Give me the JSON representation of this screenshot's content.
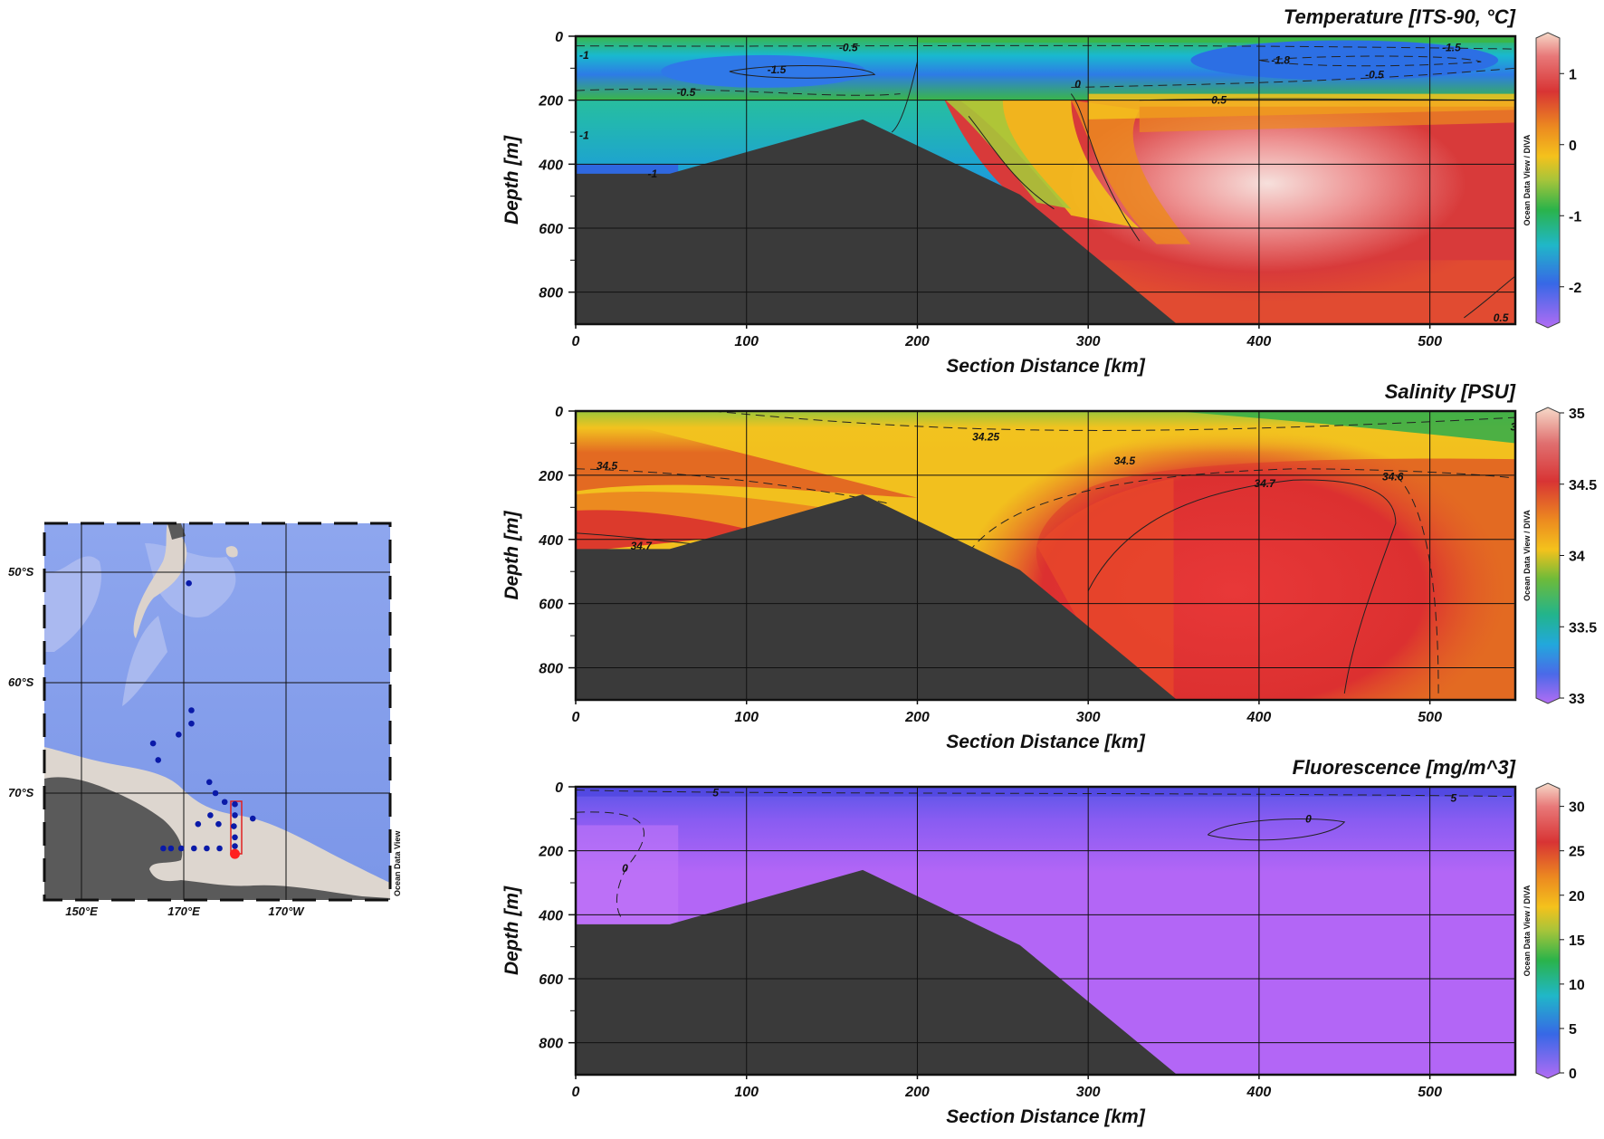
{
  "map": {
    "lat_labels": [
      "50°S",
      "60°S",
      "70°S"
    ],
    "lon_labels": [
      "150°E",
      "170°E",
      "170°W"
    ],
    "credit": "Ocean Data View",
    "colors": {
      "ocean": "#7f99e8",
      "shelf": "#aebdf0",
      "land": "#5a5a5a",
      "ice": "#ddd6cf",
      "station": "#0a1aa8",
      "highlight": "#ff2020"
    },
    "stations": [
      {
        "lon": 171.0,
        "lat": -51.0
      },
      {
        "lon": 171.5,
        "lat": -62.5
      },
      {
        "lon": 171.5,
        "lat": -63.7
      },
      {
        "lon": 169.0,
        "lat": -64.7
      },
      {
        "lon": 164.0,
        "lat": -65.5
      },
      {
        "lon": 165.0,
        "lat": -67.0
      },
      {
        "lon": 175.0,
        "lat": -69.0
      },
      {
        "lon": 176.2,
        "lat": -70.0
      },
      {
        "lon": 178.0,
        "lat": -70.8
      },
      {
        "lon": 180.0,
        "lat": -71.0
      },
      {
        "lon": 180.0,
        "lat": -72.0
      },
      {
        "lon": 183.5,
        "lat": -72.3
      },
      {
        "lon": 175.2,
        "lat": -72.0
      },
      {
        "lon": 172.8,
        "lat": -72.8
      },
      {
        "lon": 176.8,
        "lat": -72.8
      },
      {
        "lon": 179.8,
        "lat": -73.0
      },
      {
        "lon": 180.0,
        "lat": -74.0
      },
      {
        "lon": 180.0,
        "lat": -74.8
      },
      {
        "lon": 166.0,
        "lat": -75.0
      },
      {
        "lon": 167.5,
        "lat": -75.0
      },
      {
        "lon": 169.5,
        "lat": -75.0
      },
      {
        "lon": 172.0,
        "lat": -75.0
      },
      {
        "lon": 174.5,
        "lat": -75.0
      },
      {
        "lon": 177.0,
        "lat": -75.0
      }
    ],
    "highlight_station": {
      "lon": 180.0,
      "lat": -75.5
    }
  },
  "chart_data": [
    {
      "type": "heatmap",
      "title": "Temperature [ITS-90, °C]",
      "xlabel": "Section Distance [km]",
      "ylabel": "Depth [m]",
      "xlim": [
        0,
        550
      ],
      "ylim": [
        900,
        0
      ],
      "x_ticks": [
        0,
        100,
        200,
        300,
        400,
        500
      ],
      "y_ticks": [
        0,
        200,
        400,
        600,
        800
      ],
      "colorbar": {
        "range": [
          -2.5,
          1.5
        ],
        "ticks": [
          1,
          0,
          -1,
          -2
        ],
        "tick_labels": [
          "1",
          "0",
          "-1",
          "-2"
        ],
        "credit": "Ocean Data View / DIVA"
      },
      "contour_labels": [
        "-0.5",
        "-1.5",
        "-1.8",
        "-1.5",
        "-0.5",
        "-0.5",
        "0",
        "0.5",
        "0.5",
        "-1",
        "-1",
        "-1"
      ],
      "grid": true
    },
    {
      "type": "heatmap",
      "title": "Salinity [PSU]",
      "xlabel": "Section Distance [km]",
      "ylabel": "Depth [m]",
      "xlim": [
        0,
        550
      ],
      "ylim": [
        900,
        0
      ],
      "x_ticks": [
        0,
        100,
        200,
        300,
        400,
        500
      ],
      "y_ticks": [
        0,
        200,
        400,
        600,
        800
      ],
      "colorbar": {
        "range": [
          33,
          35
        ],
        "ticks": [
          35,
          34.5,
          34,
          33.5,
          33
        ],
        "tick_labels": [
          "35",
          "34.5",
          "34",
          "33.5",
          "33"
        ],
        "credit": "Ocean Data View / DIVA"
      },
      "contour_labels": [
        "34.25",
        "34.5",
        "34.5",
        "34.7",
        "34.6",
        "34.7",
        "3"
      ],
      "grid": true
    },
    {
      "type": "heatmap",
      "title": "Fluorescence [mg/m^3]",
      "xlabel": "Section Distance [km]",
      "ylabel": "Depth [m]",
      "xlim": [
        0,
        550
      ],
      "ylim": [
        900,
        0
      ],
      "x_ticks": [
        0,
        100,
        200,
        300,
        400,
        500
      ],
      "y_ticks": [
        0,
        200,
        400,
        600,
        800
      ],
      "colorbar": {
        "range": [
          0,
          32
        ],
        "ticks": [
          30,
          25,
          20,
          15,
          10,
          5,
          0
        ],
        "tick_labels": [
          "30",
          "25",
          "20",
          "15",
          "10",
          "5",
          "0"
        ],
        "credit": "Ocean Data View / DIVA"
      },
      "contour_labels": [
        "5",
        "5",
        "0",
        "0"
      ],
      "grid": true
    }
  ],
  "bathymetry": {
    "distance_km": [
      0,
      55,
      168,
      260,
      352,
      550
    ],
    "depth_m": [
      430,
      430,
      260,
      495,
      900,
      900
    ],
    "color": "#3a3a3a"
  }
}
